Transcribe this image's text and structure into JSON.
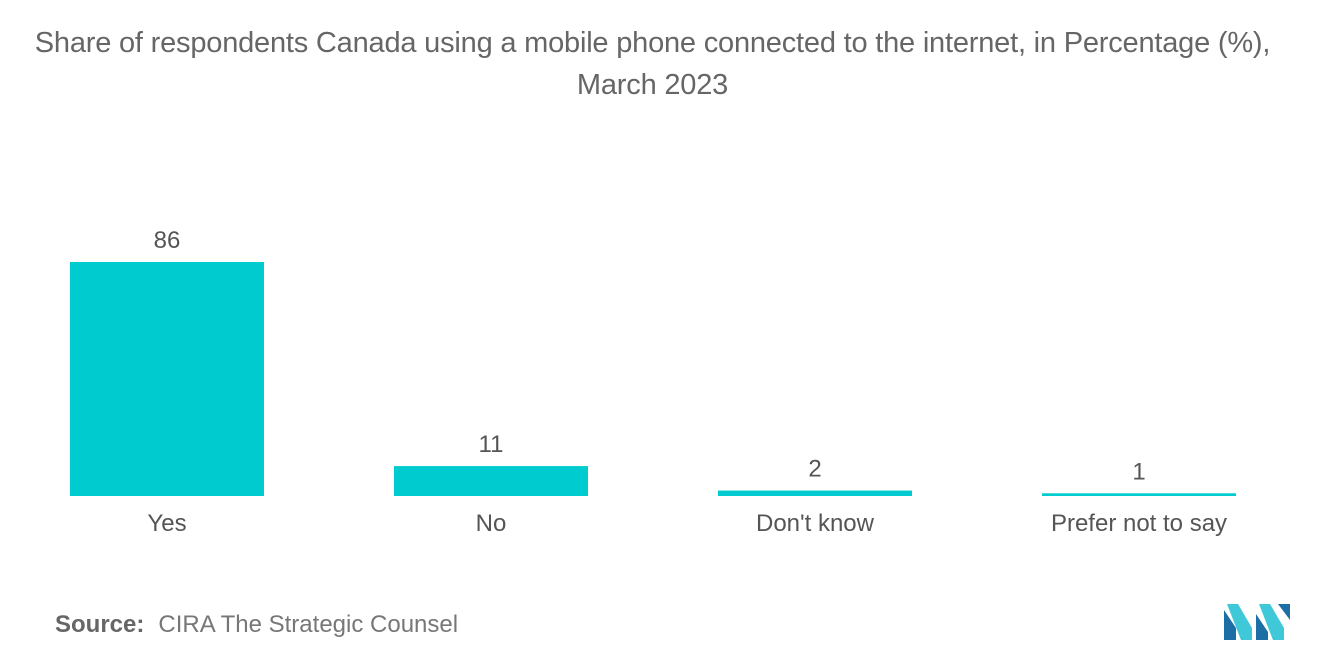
{
  "title": "Share of respondents Canada using a mobile phone connected to the internet, in Percentage (%), March 2023",
  "source": {
    "label": "Source:",
    "text": "CIRA The Strategic Counsel"
  },
  "logo": {
    "icon": "mordor-intelligence-logo-icon",
    "colors": [
      "#1e6ea6",
      "#3ec8d8"
    ]
  },
  "colors": {
    "bar": "#00cccf",
    "text": "#555555"
  },
  "chart_data": {
    "type": "bar",
    "title": "Share of respondents Canada using a mobile phone connected to the internet, in Percentage (%), March 2023",
    "categories": [
      "Yes",
      "No",
      "Don't know",
      "Prefer not to say"
    ],
    "values": [
      86,
      11,
      2,
      1
    ],
    "data_labels": [
      "86",
      "11",
      "2",
      "1"
    ],
    "xlabel": "",
    "ylabel": "",
    "ylim": [
      0,
      86
    ],
    "grid": false,
    "legend": "none"
  }
}
